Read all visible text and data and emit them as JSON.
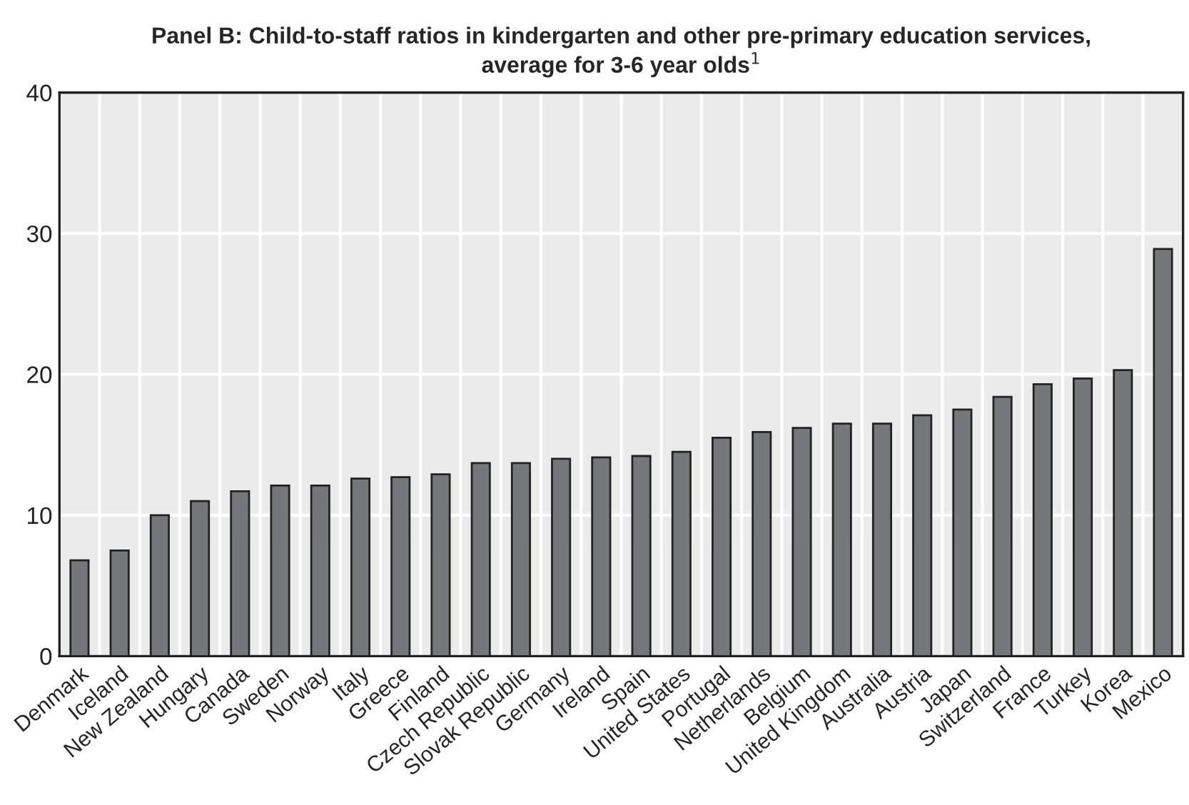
{
  "chart_data": {
    "type": "bar",
    "title": "Panel B: Child-to-staff ratios in kindergarten and other pre-primary education services,\naverage for 3-6 year olds$^{1}$",
    "categories": [
      "Denmark",
      "Iceland",
      "New Zealand",
      "Hungary",
      "Canada",
      "Sweden",
      "Norway",
      "Italy",
      "Greece",
      "Finland",
      "Czech Republic",
      "Slovak Republic",
      "Germany",
      "Ireland",
      "Spain",
      "United States",
      "Portugal",
      "Netherlands",
      "Belgium",
      "United Kingdom",
      "Australia",
      "Austria",
      "Japan",
      "Switzerland",
      "France",
      "Turkey",
      "Korea",
      "Mexico"
    ],
    "values": [
      6.8,
      7.5,
      10.0,
      11.0,
      11.7,
      12.1,
      12.1,
      12.6,
      12.7,
      12.9,
      13.7,
      13.7,
      14.0,
      14.1,
      14.2,
      14.5,
      15.5,
      15.9,
      16.2,
      16.5,
      16.5,
      17.1,
      17.5,
      18.4,
      19.3,
      19.7,
      20.3,
      28.9
    ],
    "color": "#76777b",
    "ylim": [
      0,
      40
    ],
    "yticks": [
      0,
      10,
      20,
      30,
      40
    ],
    "grid": true
  }
}
